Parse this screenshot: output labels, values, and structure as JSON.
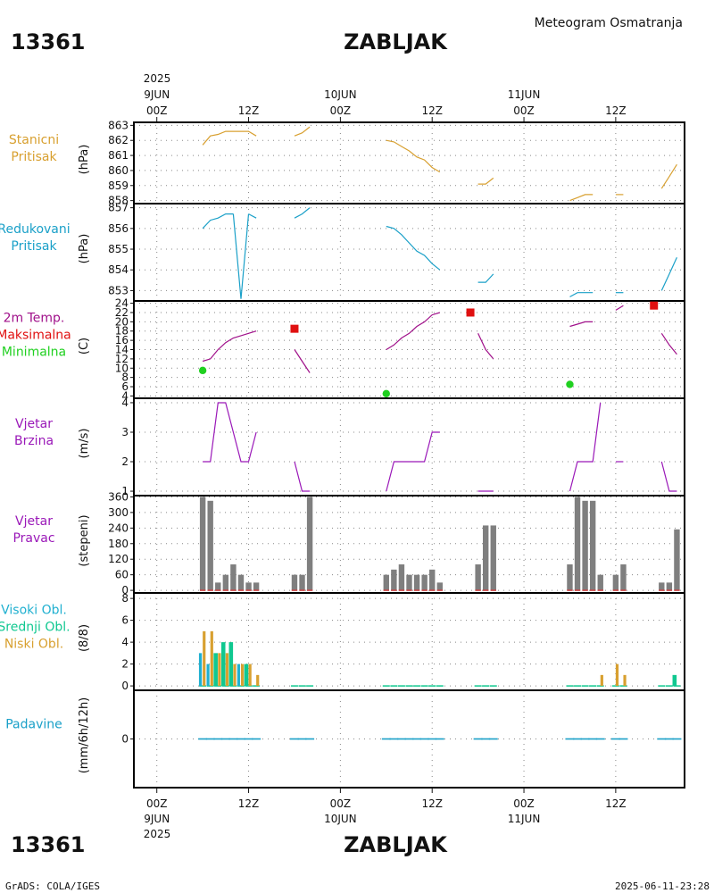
{
  "header": {
    "station_id": "13361",
    "station_name": "ZABLJAK",
    "meteogram_title": "Meteogram Osmatranja"
  },
  "footer": {
    "station_id": "13361",
    "station_name": "ZABLJAK",
    "credit": "GrADS: COLA/IGES",
    "timestamp": "2025-06-11-23:28"
  },
  "time_axis": {
    "top_year": "2025",
    "bottom_year": "2025",
    "days": [
      {
        "label": "9JUN",
        "hour": 0
      },
      {
        "label": "10JUN",
        "hour": 24
      },
      {
        "label": "11JUN",
        "hour": 48
      }
    ],
    "hour_ticks": [
      {
        "label": "00Z",
        "hour": 0
      },
      {
        "label": "12Z",
        "hour": 12
      },
      {
        "label": "00Z",
        "hour": 24
      },
      {
        "label": "12Z",
        "hour": 36
      },
      {
        "label": "00Z",
        "hour": 48
      },
      {
        "label": "12Z",
        "hour": 60
      }
    ],
    "range_hours": [
      -3,
      69
    ]
  },
  "colors": {
    "station_pressure": "#d8a030",
    "reduced_pressure": "#1aa0c8",
    "temperature": "#a0108a",
    "max_temp": "#e01010",
    "min_temp": "#20d020",
    "wind_speed": "#9a18b8",
    "wind_dir_label": "#9a18b8",
    "wind_bar": "#7f7f7f",
    "wind_base": "#d04040",
    "high_cloud": "#20b0d0",
    "mid_cloud": "#10c890",
    "low_cloud": "#d8a030",
    "precip": "#1aa0c8",
    "precip_label": "#1aa0c8"
  },
  "panels": {
    "station_pressure": {
      "label_lines": [
        "Stanicni",
        "Pritisak"
      ],
      "unit": "(hPa)"
    },
    "reduced_pressure": {
      "label_lines": [
        "Redukovani",
        "Pritisak"
      ],
      "unit": "(hPa)"
    },
    "temperature": {
      "label_lines": [
        "2m Temp.",
        "Maksimalna",
        "Minimalna"
      ],
      "unit": "(C)"
    },
    "wind_speed": {
      "label_lines": [
        "Vjetar",
        "Brzina"
      ],
      "unit": "(m/s)"
    },
    "wind_direction": {
      "label_lines": [
        "Vjetar",
        "Pravac"
      ],
      "unit": "(stepeni)"
    },
    "clouds": {
      "label_lines": [
        "Visoki Obl.",
        "Srednji Obl.",
        "Niski Obl."
      ],
      "unit": "(8/8)"
    },
    "precip": {
      "label_lines": [
        "Padavine"
      ],
      "unit": "(mm/6h/12h)"
    }
  },
  "chart_data": [
    {
      "type": "line",
      "id": "station_pressure",
      "title": "Stanicni Pritisak",
      "ylabel": "(hPa)",
      "ylim": [
        857.8,
        863.2
      ],
      "yticks": [
        858,
        859,
        860,
        861,
        862,
        863
      ],
      "x_unit": "hours since 2025-06-09 00Z",
      "segments": [
        {
          "x": [
            6,
            7,
            8,
            9,
            10,
            11,
            12,
            13
          ],
          "y": [
            861.7,
            862.3,
            862.4,
            862.6,
            862.6,
            862.6,
            862.6,
            862.3
          ]
        },
        {
          "x": [
            18,
            19,
            20
          ],
          "y": [
            862.3,
            862.5,
            862.9
          ]
        },
        {
          "x": [
            30,
            31,
            32,
            33,
            34,
            35,
            36,
            37
          ],
          "y": [
            862.0,
            861.9,
            861.6,
            861.3,
            860.9,
            860.7,
            860.2,
            859.9
          ]
        },
        {
          "x": [
            42,
            43,
            44
          ],
          "y": [
            859.1,
            859.1,
            859.5
          ]
        },
        {
          "x": [
            54,
            55,
            56,
            57
          ],
          "y": [
            858.0,
            858.2,
            858.4,
            858.4
          ]
        },
        {
          "x": [
            60,
            61
          ],
          "y": [
            858.4,
            858.4
          ]
        },
        {
          "x": [
            66,
            67,
            68
          ],
          "y": [
            858.8,
            859.6,
            860.4
          ]
        }
      ]
    },
    {
      "type": "line",
      "id": "reduced_pressure",
      "title": "Redukovani Pritisak",
      "ylabel": "(hPa)",
      "ylim": [
        852.5,
        857.2
      ],
      "yticks": [
        853,
        854,
        855,
        856,
        857
      ],
      "x_unit": "hours since 2025-06-09 00Z",
      "segments": [
        {
          "x": [
            6,
            7,
            8,
            9,
            10
          ],
          "y": [
            856.0,
            856.4,
            856.5,
            856.7,
            856.7
          ]
        },
        {
          "x": [
            10,
            11,
            12
          ],
          "y": [
            856.7,
            852.6,
            856.7
          ]
        },
        {
          "x": [
            12,
            13
          ],
          "y": [
            856.7,
            856.5
          ]
        },
        {
          "x": [
            18,
            19,
            20
          ],
          "y": [
            856.5,
            856.7,
            857.0
          ]
        },
        {
          "x": [
            30,
            31,
            32,
            33,
            34,
            35,
            36,
            37
          ],
          "y": [
            856.1,
            856.0,
            855.7,
            855.3,
            854.9,
            854.7,
            854.3,
            854.0
          ]
        },
        {
          "x": [
            42,
            43,
            44
          ],
          "y": [
            853.4,
            853.4,
            853.8
          ]
        },
        {
          "x": [
            54,
            55,
            56,
            57
          ],
          "y": [
            852.7,
            852.9,
            852.9,
            852.9
          ]
        },
        {
          "x": [
            60,
            61
          ],
          "y": [
            852.9,
            852.9
          ]
        },
        {
          "x": [
            66,
            67,
            68
          ],
          "y": [
            853.0,
            853.8,
            854.6
          ]
        }
      ]
    },
    {
      "type": "line",
      "id": "temperature",
      "title": "2m Temp. Maksimalna Minimalna",
      "ylabel": "(C)",
      "ylim": [
        3.5,
        24.5
      ],
      "yticks": [
        4,
        6,
        8,
        10,
        12,
        14,
        16,
        18,
        20,
        22,
        24
      ],
      "x_unit": "hours since 2025-06-09 00Z",
      "segments": [
        {
          "x": [
            6,
            7,
            8,
            9,
            10,
            11,
            12,
            13
          ],
          "y": [
            11.5,
            12.0,
            14.0,
            15.5,
            16.5,
            17.0,
            17.5,
            18.0
          ]
        },
        {
          "x": [
            18,
            19,
            20
          ],
          "y": [
            14.0,
            11.5,
            9.0
          ]
        },
        {
          "x": [
            30,
            31,
            32,
            33,
            34,
            35,
            36,
            37
          ],
          "y": [
            14.0,
            15.0,
            16.5,
            17.5,
            19.0,
            20.0,
            21.5,
            22.0
          ]
        },
        {
          "x": [
            42,
            43,
            44
          ],
          "y": [
            17.5,
            14.0,
            12.0
          ]
        },
        {
          "x": [
            54,
            55,
            56,
            57
          ],
          "y": [
            19.0,
            19.5,
            20.0,
            20.0
          ]
        },
        {
          "x": [
            60,
            61
          ],
          "y": [
            22.5,
            23.5
          ]
        },
        {
          "x": [
            66,
            67,
            68
          ],
          "y": [
            17.5,
            15.0,
            13.0
          ]
        }
      ],
      "max_temp": [
        {
          "x": 18,
          "y": 18.5
        },
        {
          "x": 41,
          "y": 22.0
        },
        {
          "x": 65,
          "y": 23.5
        }
      ],
      "min_temp": [
        {
          "x": 6,
          "y": 9.5
        },
        {
          "x": 30,
          "y": 4.5
        },
        {
          "x": 54,
          "y": 6.5
        }
      ]
    },
    {
      "type": "line",
      "id": "wind_speed",
      "title": "Vjetar Brzina",
      "ylabel": "(m/s)",
      "ylim": [
        0.85,
        4.15
      ],
      "yticks": [
        1,
        2,
        3,
        4
      ],
      "x_unit": "hours since 2025-06-09 00Z",
      "segments": [
        {
          "x": [
            6,
            7,
            8,
            9,
            10,
            11,
            12,
            13
          ],
          "y": [
            2,
            2,
            4,
            4,
            3,
            2,
            2,
            3
          ]
        },
        {
          "x": [
            18,
            19,
            20
          ],
          "y": [
            2,
            1,
            1
          ]
        },
        {
          "x": [
            30,
            31,
            32,
            33,
            34,
            35,
            36,
            37
          ],
          "y": [
            1,
            2,
            2,
            2,
            2,
            2,
            3,
            3
          ]
        },
        {
          "x": [
            42,
            43,
            44
          ],
          "y": [
            1,
            1,
            1
          ]
        },
        {
          "x": [
            54,
            55,
            56,
            57,
            58
          ],
          "y": [
            1,
            2,
            2,
            2,
            4
          ]
        },
        {
          "x": [
            60,
            61
          ],
          "y": [
            2,
            2
          ]
        },
        {
          "x": [
            66,
            67,
            68
          ],
          "y": [
            2,
            1,
            1
          ]
        }
      ]
    },
    {
      "type": "bar",
      "id": "wind_direction",
      "title": "Vjetar Pravac",
      "ylabel": "(stepeni)",
      "ylim": [
        -10,
        365
      ],
      "yticks": [
        0,
        60,
        120,
        180,
        240,
        300,
        360
      ],
      "x_unit": "hours since 2025-06-09 00Z",
      "x": [
        6,
        7,
        8,
        9,
        10,
        11,
        12,
        13,
        18,
        19,
        20,
        30,
        31,
        32,
        33,
        34,
        35,
        36,
        37,
        42,
        43,
        44,
        54,
        55,
        56,
        57,
        58,
        60,
        61,
        66,
        67,
        68
      ],
      "values": [
        360,
        345,
        30,
        60,
        100,
        60,
        30,
        30,
        60,
        60,
        360,
        60,
        80,
        100,
        60,
        60,
        60,
        80,
        30,
        100,
        250,
        250,
        100,
        360,
        345,
        345,
        60,
        60,
        100,
        30,
        30,
        235
      ]
    },
    {
      "type": "bar",
      "id": "clouds",
      "title": "Visoki Obl. Srednji Obl. Niski Obl.",
      "ylabel": "(8/8)",
      "ylim": [
        -0.4,
        8.5
      ],
      "yticks": [
        0,
        2,
        4,
        6,
        8
      ],
      "x_unit": "hours since 2025-06-09 00Z",
      "x": [
        6,
        7,
        8,
        9,
        10,
        11,
        12,
        13,
        18,
        19,
        20,
        30,
        31,
        32,
        33,
        34,
        35,
        36,
        37,
        42,
        43,
        44,
        54,
        55,
        56,
        57,
        58,
        60,
        61,
        66,
        67,
        68
      ],
      "series": [
        {
          "name": "Visoki Obl.",
          "values": [
            3,
            2,
            1,
            1,
            2,
            2,
            0,
            0,
            0,
            0,
            0,
            0,
            0,
            0,
            0,
            0,
            0,
            0,
            0,
            0,
            0,
            0,
            0,
            0,
            0,
            0,
            0,
            0,
            0,
            0,
            0,
            0
          ]
        },
        {
          "name": "Srednji Obl.",
          "values": [
            0,
            0,
            3,
            4,
            4,
            0,
            2,
            0,
            0,
            0,
            0,
            0,
            0,
            0,
            0,
            0,
            0,
            0,
            0,
            0,
            0,
            0,
            0,
            0,
            0,
            0,
            0,
            0,
            0,
            0,
            0,
            1
          ]
        },
        {
          "name": "Niski Obl.",
          "values": [
            5,
            5,
            3,
            3,
            2,
            2,
            2,
            1,
            0,
            0,
            0,
            0,
            0,
            0,
            0,
            0,
            0,
            0,
            0,
            0,
            0,
            0,
            0,
            0,
            0,
            0,
            1,
            2,
            1,
            0,
            0,
            0
          ]
        }
      ]
    },
    {
      "type": "bar",
      "id": "precip",
      "title": "Padavine",
      "ylabel": "(mm/6h/12h)",
      "ylim": [
        -4,
        4
      ],
      "yticks": [
        0
      ],
      "x_unit": "hours since 2025-06-09 00Z",
      "x": [
        6,
        7,
        8,
        9,
        10,
        11,
        12,
        13,
        18,
        19,
        20,
        30,
        31,
        32,
        33,
        34,
        35,
        36,
        37,
        42,
        43,
        44,
        54,
        55,
        56,
        57,
        58,
        60,
        61,
        66,
        67,
        68
      ],
      "values": [
        0,
        0,
        0,
        0,
        0,
        0,
        0,
        0,
        0,
        0,
        0,
        0,
        0,
        0,
        0,
        0,
        0,
        0,
        0,
        0,
        0,
        0,
        0,
        0,
        0,
        0,
        0,
        0,
        0,
        0,
        0,
        0
      ]
    }
  ]
}
